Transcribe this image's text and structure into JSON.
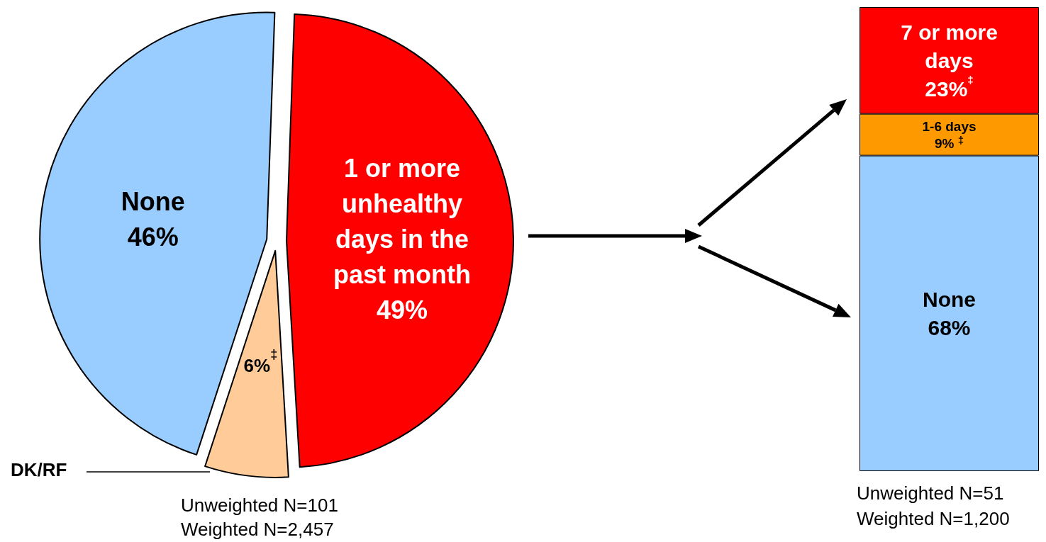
{
  "chart_data": [
    {
      "type": "pie",
      "categories": [
        "1 or more unhealthy days in the past month",
        "DK/RF",
        "None"
      ],
      "values": [
        49,
        6,
        46
      ],
      "colors": [
        "#ff0000",
        "#ffcc99",
        "#99ccff"
      ],
      "value_labels": [
        "49%",
        "6%$^{‡}$",
        "46%"
      ],
      "annotations": [
        "Unweighted N=101",
        "Weighted N=2,457"
      ]
    },
    {
      "type": "bar",
      "stacked": true,
      "categories": [
        null
      ],
      "ylim": [
        0,
        100
      ],
      "tick_labels": false,
      "series": [
        {
          "name": "None",
          "color": "#99ccff",
          "values": [
            68
          ],
          "value_labels": [
            "68%"
          ]
        },
        {
          "name": "1-6 days",
          "color": "#ff9900",
          "values": [
            9
          ],
          "value_labels": [
            "9% $^{‡}$"
          ]
        },
        {
          "name": "7 or more days",
          "color": "#ff0000",
          "values": [
            23
          ],
          "value_labels": [
            "23%$^{‡}$"
          ]
        }
      ],
      "annotations": [
        "Unweighted N=51",
        "Weighted N=1,200"
      ]
    }
  ]
}
